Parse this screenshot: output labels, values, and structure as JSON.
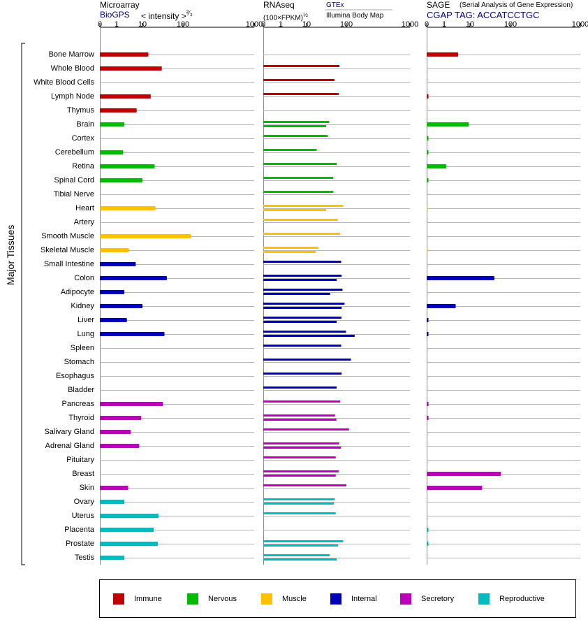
{
  "panels": {
    "microarray": {
      "title": "Microarray",
      "source": "BioGPS",
      "scale_label": "< intensity >",
      "scale_exp": "²⁄₃"
    },
    "rnaseq": {
      "title": "RNAseq",
      "scale_label": "(100×FPKM)",
      "scale_exp": "½",
      "source_top": "GTEx",
      "source_bottom": "Illumina Body Map"
    },
    "sage": {
      "title": "SAGE",
      "subtitle": "(Serial Analysis of Gene Expression)",
      "source": "CGAP  TAG: ACCATCCTGC"
    }
  },
  "axis_ticks": [
    "0",
    "1",
    "10",
    "100",
    "1000"
  ],
  "y_label": "Major Tissues",
  "colors": {
    "Immune": "#c00000",
    "Nervous": "#00bb00",
    "Muscle": "#ffc000",
    "Internal": "#0000bb",
    "Secretory": "#bb00bb",
    "Reproductive": "#00bbbb"
  },
  "legend": [
    {
      "label": "Immune",
      "color": "#c00000"
    },
    {
      "label": "Nervous",
      "color": "#00bb00"
    },
    {
      "label": "Muscle",
      "color": "#ffc000"
    },
    {
      "label": "Internal",
      "color": "#0000bb"
    },
    {
      "label": "Secretory",
      "color": "#bb00bb"
    },
    {
      "label": "Reproductive",
      "color": "#00bbbb"
    }
  ],
  "chart_data": {
    "type": "bar",
    "x_scale": "log-like (0, 1, 10, 100, 1000)",
    "xlim": [
      0,
      1000
    ],
    "categories": [
      "Bone Marrow",
      "Whole Blood",
      "White Blood Cells",
      "Lymph Node",
      "Thymus",
      "Brain",
      "Cortex",
      "Cerebellum",
      "Retina",
      "Spinal Cord",
      "Tibial Nerve",
      "Heart",
      "Artery",
      "Smooth Muscle",
      "Skeletal Muscle",
      "Small Intestine",
      "Colon",
      "Adipocyte",
      "Kidney",
      "Liver",
      "Lung",
      "Spleen",
      "Stomach",
      "Esophagus",
      "Bladder",
      "Pancreas",
      "Thyroid",
      "Salivary Gland",
      "Adrenal Gland",
      "Pituitary",
      "Breast",
      "Skin",
      "Ovary",
      "Uterus",
      "Placenta",
      "Prostate",
      "Testis"
    ],
    "groups": [
      "Immune",
      "Immune",
      "Immune",
      "Immune",
      "Immune",
      "Nervous",
      "Nervous",
      "Nervous",
      "Nervous",
      "Nervous",
      "Nervous",
      "Muscle",
      "Muscle",
      "Muscle",
      "Muscle",
      "Internal",
      "Internal",
      "Internal",
      "Internal",
      "Internal",
      "Internal",
      "Internal",
      "Internal",
      "Internal",
      "Internal",
      "Secretory",
      "Secretory",
      "Secretory",
      "Secretory",
      "Secretory",
      "Secretory",
      "Secretory",
      "Reproductive",
      "Reproductive",
      "Reproductive",
      "Reproductive",
      "Reproductive"
    ],
    "series": [
      {
        "name": "Microarray",
        "values": [
          14,
          30,
          null,
          16,
          6,
          2,
          null,
          1.8,
          20,
          10,
          null,
          21,
          null,
          130,
          3,
          5.5,
          40,
          2,
          10,
          2.5,
          35,
          null,
          null,
          null,
          null,
          32,
          9,
          3.5,
          7.5,
          null,
          null,
          2.8,
          2,
          25,
          19,
          24,
          2
        ]
      },
      {
        "name": "RNAseq GTEx",
        "values": [
          null,
          67,
          50,
          64,
          null,
          37,
          34,
          18,
          57,
          47,
          47,
          83,
          61,
          70,
          20,
          74,
          76,
          80,
          90,
          75,
          98,
          74,
          118,
          76,
          57,
          70,
          52,
          110,
          66,
          54,
          64,
          100,
          51,
          54,
          null,
          83,
          38
        ]
      },
      {
        "name": "RNAseq Illumina",
        "values": [
          null,
          null,
          null,
          null,
          null,
          31,
          null,
          null,
          null,
          null,
          null,
          31,
          null,
          null,
          17,
          null,
          57,
          39,
          76,
          57,
          135,
          null,
          null,
          null,
          null,
          null,
          56,
          null,
          73,
          null,
          54,
          null,
          48,
          null,
          null,
          62,
          57
        ]
      },
      {
        "name": "SAGE",
        "values": [
          3.5,
          null,
          null,
          0.1,
          null,
          9,
          0.1,
          0.1,
          1.2,
          0.1,
          null,
          0.05,
          null,
          null,
          0.05,
          null,
          40,
          null,
          2.8,
          0.1,
          0.1,
          null,
          null,
          null,
          null,
          0.1,
          0.1,
          null,
          null,
          null,
          58,
          20,
          null,
          null,
          0.1,
          0.1,
          null
        ]
      }
    ]
  }
}
